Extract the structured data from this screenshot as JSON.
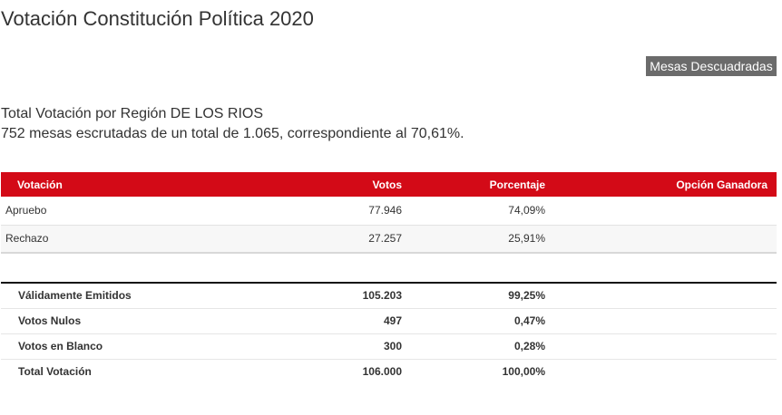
{
  "title": "Votación Constitución Política 2020",
  "mesas_button": "Mesas Descuadradas",
  "subtitle": {
    "line1": "Total Votación por Región DE LOS RIOS",
    "line2": "752 mesas escrutadas de un total de 1.065, correspondiente al 70,61%."
  },
  "results": {
    "headers": {
      "votacion": "Votación",
      "votos": "Votos",
      "porcentaje": "Porcentaje",
      "opcion": "Opción Ganadora"
    },
    "rows": [
      {
        "votacion": "Apruebo",
        "votos": "77.946",
        "porcentaje": "74,09%",
        "opcion": ""
      },
      {
        "votacion": "Rechazo",
        "votos": "27.257",
        "porcentaje": "25,91%",
        "opcion": ""
      }
    ]
  },
  "totals": [
    {
      "label": "Válidamente Emitidos",
      "votos": "105.203",
      "porcentaje": "99,25%"
    },
    {
      "label": "Votos Nulos",
      "votos": "497",
      "porcentaje": "0,47%"
    },
    {
      "label": "Votos en Blanco",
      "votos": "300",
      "porcentaje": "0,28%"
    },
    {
      "label": "Total Votación",
      "votos": "106.000",
      "porcentaje": "100,00%"
    }
  ],
  "colors": {
    "header_red": "#d30a17",
    "button_gray": "#6b6b6b",
    "text": "#333333"
  }
}
